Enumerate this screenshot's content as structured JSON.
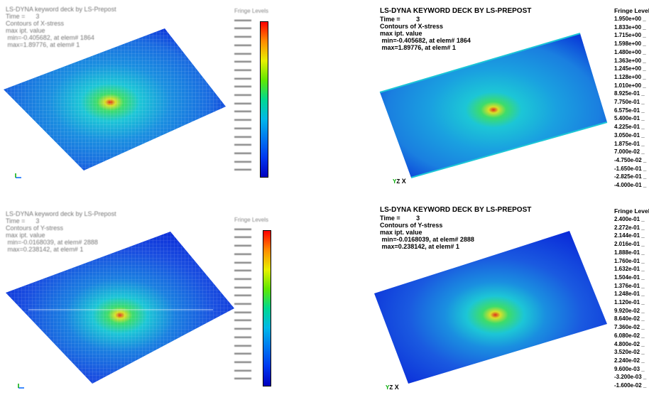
{
  "panels": {
    "top_right": {
      "title": "LS-DYNA KEYWORD DECK BY LS-PREPOST",
      "time_line": "Time =         3",
      "contours": "Contours of X-stress",
      "value_type": "max ipt. value",
      "min_line": " min=-0.405682, at elem# 1864",
      "max_line": " max=1.89776, at elem# 1",
      "legend_title": "Fringe Levels",
      "legend_values": [
        "1.950e+00",
        "1.833e+00",
        "1.715e+00",
        "1.598e+00",
        "1.480e+00",
        "1.363e+00",
        "1.245e+00",
        "1.128e+00",
        "1.010e+00",
        "8.925e-01",
        "7.750e-01",
        "6.575e-01",
        "5.400e-01",
        "4.225e-01",
        "3.050e-01",
        "1.875e-01",
        "7.000e-02",
        "-4.750e-02",
        "-1.650e-01",
        "-2.825e-01",
        "-4.000e-01"
      ],
      "axis_label": "X",
      "axis_y": "Y",
      "axis_z": "Z"
    },
    "bottom_right": {
      "title": "LS-DYNA KEYWORD DECK BY LS-PREPOST",
      "time_line": "Time =         3",
      "contours": "Contours of Y-stress",
      "value_type": "max ipt. value",
      "min_line": " min=-0.0168039, at elem# 2888",
      "max_line": " max=0.238142, at elem# 1",
      "legend_title": "Fringe Levels",
      "legend_values": [
        "2.400e-01",
        "2.272e-01",
        "2.144e-01",
        "2.016e-01",
        "1.888e-01",
        "1.760e-01",
        "1.632e-01",
        "1.504e-01",
        "1.376e-01",
        "1.248e-01",
        "1.120e-01",
        "9.920e-02",
        "8.640e-02",
        "7.360e-02",
        "6.080e-02",
        "4.800e-02",
        "3.520e-02",
        "2.240e-02",
        "9.600e-03",
        "-3.200e-03",
        "-1.600e-02"
      ],
      "axis_label": "X",
      "axis_y": "Y",
      "axis_z": "Z"
    }
  },
  "colors": {
    "plate_edge_dark": "#0a2bd9",
    "plate_mid": "#1a6be0",
    "ring_cyan": "#1cc6d6",
    "ring_green": "#3ddc6a",
    "ring_yellow": "#d8e02a",
    "hotspot_red": "#e0301a",
    "colorbar": [
      "#ff0000",
      "#ff4a00",
      "#ff8c00",
      "#ffc800",
      "#e8f000",
      "#a8f000",
      "#60e800",
      "#20e040",
      "#00d890",
      "#00d0c8",
      "#00b8e8",
      "#0098f0",
      "#0078f0",
      "#0058f0",
      "#0038f0",
      "#0018f0",
      "#0000e8",
      "#0000d0",
      "#0000c0",
      "#0000b0"
    ]
  }
}
